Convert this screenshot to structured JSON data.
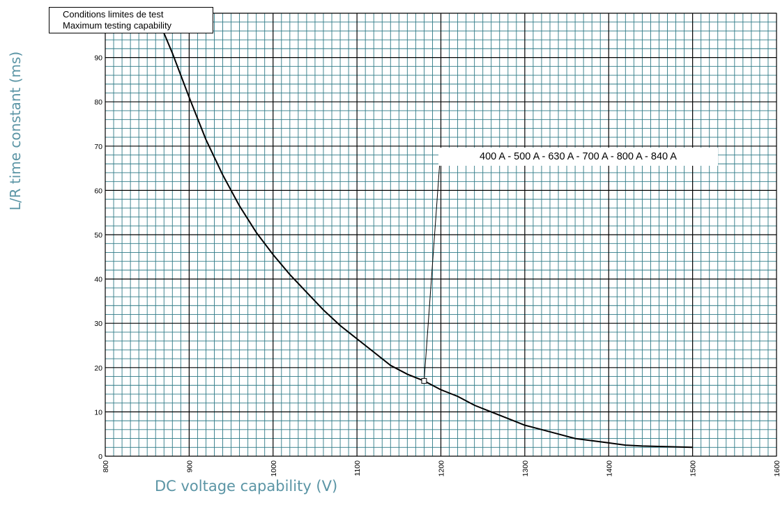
{
  "chart_data": {
    "type": "line",
    "xlabel": "DC voltage capability (V)",
    "ylabel": "L/R time constant (ms)",
    "xlim": [
      800,
      1600
    ],
    "ylim": [
      0,
      100
    ],
    "x_ticks": [
      "800",
      "900",
      "1000",
      "1100",
      "1200",
      "1300",
      "1400",
      "1500",
      "1600"
    ],
    "y_ticks": [
      "0",
      "10",
      "20",
      "30",
      "40",
      "50",
      "60",
      "70",
      "80",
      "90",
      "100"
    ],
    "grid": true,
    "legend_lines": [
      "Conditions limites de test",
      "Maximum testing capability"
    ],
    "legend_placement": "top-left",
    "series": [
      {
        "x": [
          800,
          860,
          880,
          900,
          920,
          940,
          960,
          980,
          1000,
          1020,
          1040,
          1060,
          1080,
          1100,
          1120,
          1140,
          1160,
          1180,
          1200,
          1220,
          1240,
          1260,
          1280,
          1300,
          1320,
          1340,
          1360,
          1380,
          1400,
          1420,
          1440,
          1460,
          1480,
          1500
        ],
        "y": [
          100,
          100,
          91,
          81,
          71.5,
          63.5,
          56.5,
          50.5,
          45.5,
          41,
          37,
          33,
          29.5,
          26.5,
          23.5,
          20.5,
          18.5,
          17,
          15,
          13.5,
          11.5,
          10,
          8.5,
          7,
          6,
          5,
          4,
          3.5,
          3,
          2.5,
          2.3,
          2.2,
          2.1,
          2
        ]
      }
    ],
    "annotation": {
      "text": "400 A - 500 A - 630 A - 700 A - 800 A - 840 A",
      "x": 1180,
      "y": 17
    }
  }
}
